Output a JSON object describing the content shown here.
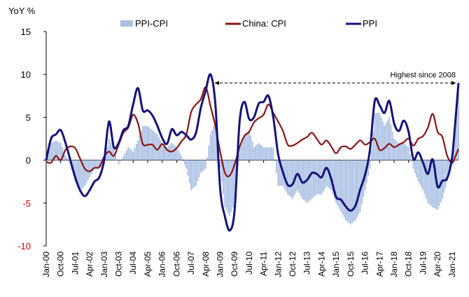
{
  "chart_data": {
    "type": "line",
    "ylabel": "YoY %",
    "ylim": [
      -10,
      15
    ],
    "yticks": [
      15,
      10,
      5,
      0,
      -5,
      -10
    ],
    "x_tick_labels": [
      "Jan-00",
      "Oct-00",
      "Jul-01",
      "Apr-02",
      "Jan-03",
      "Oct-03",
      "Jul-04",
      "Apr-05",
      "Jan-06",
      "Oct-06",
      "Jul-07",
      "Apr-08",
      "Jan-09",
      "Oct-09",
      "Jul-10",
      "Apr-11",
      "Jan-12",
      "Oct-12",
      "Jul-13",
      "Apr-14",
      "Jan-15",
      "Oct-15",
      "Jul-16",
      "Apr-17",
      "Jan-18",
      "Oct-18",
      "Jul-19",
      "Apr-20",
      "Jan-21"
    ],
    "x_start": "Jan-00",
    "x_end": "May-21",
    "grid": false,
    "legend_position": "top",
    "annotation": {
      "text": "Highest since 2008",
      "from": "Aug-08",
      "to": "May-21",
      "value": 9.0
    },
    "colors": {
      "ppi_cpi": "#a9bfe3",
      "cpi": "#8b1414",
      "ppi": "#14127a",
      "negative_tick": "#d40000"
    },
    "series": [
      {
        "name": "PPI-CPI",
        "kind": "bar",
        "points": [
          [
            "Jan-00",
            0.5
          ],
          [
            "Apr-00",
            2.0
          ],
          [
            "Jul-00",
            2.3
          ],
          [
            "Oct-00",
            2.0
          ],
          [
            "Jan-01",
            0.6
          ],
          [
            "Apr-01",
            -0.5
          ],
          [
            "Jul-01",
            -2.5
          ],
          [
            "Oct-01",
            -3.5
          ],
          [
            "Jan-02",
            -3.0
          ],
          [
            "Apr-02",
            -2.0
          ],
          [
            "Jul-02",
            -1.0
          ],
          [
            "Oct-02",
            -1.0
          ],
          [
            "Jan-03",
            -0.5
          ],
          [
            "Apr-03",
            2.5
          ],
          [
            "Jul-03",
            1.3
          ],
          [
            "Oct-03",
            -0.5
          ],
          [
            "Jan-04",
            0.5
          ],
          [
            "Apr-04",
            1.5
          ],
          [
            "Jul-04",
            1.0
          ],
          [
            "Oct-04",
            2.3
          ],
          [
            "Jan-05",
            4.0
          ],
          [
            "Apr-05",
            4.0
          ],
          [
            "Jul-05",
            3.5
          ],
          [
            "Oct-05",
            3.0
          ],
          [
            "Jan-06",
            2.0
          ],
          [
            "Apr-06",
            1.5
          ],
          [
            "Jul-06",
            2.0
          ],
          [
            "Oct-06",
            1.5
          ],
          [
            "Jan-07",
            0.5
          ],
          [
            "Apr-07",
            -1.0
          ],
          [
            "Jul-07",
            -3.5
          ],
          [
            "Oct-07",
            -3.0
          ],
          [
            "Jan-08",
            -1.5
          ],
          [
            "Apr-08",
            -1.0
          ],
          [
            "Jul-08",
            3.0
          ],
          [
            "Oct-08",
            4.5
          ],
          [
            "Jan-09",
            -1.0
          ],
          [
            "Apr-09",
            -5.5
          ],
          [
            "Jul-09",
            -6.5
          ],
          [
            "Oct-09",
            -5.0
          ],
          [
            "Jan-10",
            1.5
          ],
          [
            "Apr-10",
            3.0
          ],
          [
            "Jul-10",
            3.5
          ],
          [
            "Oct-10",
            1.5
          ],
          [
            "Jan-11",
            2.0
          ],
          [
            "Apr-11",
            1.5
          ],
          [
            "Jul-11",
            1.5
          ],
          [
            "Oct-11",
            1.5
          ],
          [
            "Jan-12",
            -3.0
          ],
          [
            "Apr-12",
            -3.0
          ],
          [
            "Jul-12",
            -4.0
          ],
          [
            "Oct-12",
            -4.5
          ],
          [
            "Jan-13",
            -3.5
          ],
          [
            "Apr-13",
            -4.5
          ],
          [
            "Jul-13",
            -5.0
          ],
          [
            "Oct-13",
            -4.5
          ],
          [
            "Jan-14",
            -4.0
          ],
          [
            "Apr-14",
            -4.0
          ],
          [
            "Jul-14",
            -3.0
          ],
          [
            "Oct-14",
            -3.5
          ],
          [
            "Jan-15",
            -5.0
          ],
          [
            "Apr-15",
            -6.0
          ],
          [
            "Jul-15",
            -7.0
          ],
          [
            "Oct-15",
            -7.5
          ],
          [
            "Jan-16",
            -7.0
          ],
          [
            "Apr-16",
            -6.0
          ],
          [
            "Jul-16",
            -3.5
          ],
          [
            "Oct-16",
            -1.0
          ],
          [
            "Jan-17",
            5.5
          ],
          [
            "Apr-17",
            5.5
          ],
          [
            "Jul-17",
            4.0
          ],
          [
            "Oct-17",
            5.0
          ],
          [
            "Jan-18",
            2.5
          ],
          [
            "Apr-18",
            2.0
          ],
          [
            "Jul-18",
            2.0
          ],
          [
            "Oct-18",
            1.5
          ],
          [
            "Jan-19",
            -1.0
          ],
          [
            "Apr-19",
            -2.5
          ],
          [
            "Jul-19",
            -3.5
          ],
          [
            "Oct-19",
            -5.0
          ],
          [
            "Jan-20",
            -5.5
          ],
          [
            "Apr-20",
            -5.8
          ],
          [
            "Jul-20",
            -4.5
          ],
          [
            "Oct-20",
            -2.5
          ],
          [
            "Jan-21",
            0.0
          ],
          [
            "Mar-21",
            4.0
          ],
          [
            "May-21",
            7.8
          ]
        ]
      },
      {
        "name": "China: CPI",
        "kind": "line",
        "points": [
          [
            "Jan-00",
            -0.2
          ],
          [
            "Apr-00",
            -0.3
          ],
          [
            "Jul-00",
            0.5
          ],
          [
            "Oct-00",
            0.0
          ],
          [
            "Jan-01",
            1.2
          ],
          [
            "Apr-01",
            1.6
          ],
          [
            "Jul-01",
            1.4
          ],
          [
            "Oct-01",
            0.2
          ],
          [
            "Jan-02",
            -1.0
          ],
          [
            "Apr-02",
            -1.3
          ],
          [
            "Jul-02",
            -0.9
          ],
          [
            "Oct-02",
            -0.8
          ],
          [
            "Jan-03",
            0.4
          ],
          [
            "Apr-03",
            1.0
          ],
          [
            "Jul-03",
            0.5
          ],
          [
            "Oct-03",
            1.8
          ],
          [
            "Jan-04",
            3.2
          ],
          [
            "Apr-04",
            3.8
          ],
          [
            "Jul-04",
            5.3
          ],
          [
            "Oct-04",
            4.3
          ],
          [
            "Jan-05",
            1.9
          ],
          [
            "Apr-05",
            1.8
          ],
          [
            "Jul-05",
            1.8
          ],
          [
            "Oct-05",
            1.2
          ],
          [
            "Jan-06",
            1.9
          ],
          [
            "Apr-06",
            1.2
          ],
          [
            "Jul-06",
            1.0
          ],
          [
            "Oct-06",
            1.4
          ],
          [
            "Jan-07",
            2.2
          ],
          [
            "Apr-07",
            3.0
          ],
          [
            "Jul-07",
            5.6
          ],
          [
            "Oct-07",
            6.5
          ],
          [
            "Jan-08",
            7.1
          ],
          [
            "Apr-08",
            8.5
          ],
          [
            "Jul-08",
            6.3
          ],
          [
            "Oct-08",
            4.0
          ],
          [
            "Jan-09",
            1.0
          ],
          [
            "Apr-09",
            -1.5
          ],
          [
            "Jul-09",
            -1.8
          ],
          [
            "Oct-09",
            -0.5
          ],
          [
            "Jan-10",
            1.5
          ],
          [
            "Apr-10",
            2.8
          ],
          [
            "Jul-10",
            3.3
          ],
          [
            "Oct-10",
            4.4
          ],
          [
            "Jan-11",
            4.9
          ],
          [
            "Apr-11",
            5.3
          ],
          [
            "Jul-11",
            6.5
          ],
          [
            "Oct-11",
            5.5
          ],
          [
            "Jan-12",
            4.5
          ],
          [
            "Apr-12",
            3.4
          ],
          [
            "Jul-12",
            1.8
          ],
          [
            "Oct-12",
            1.7
          ],
          [
            "Jan-13",
            2.0
          ],
          [
            "Apr-13",
            2.4
          ],
          [
            "Jul-13",
            2.7
          ],
          [
            "Oct-13",
            3.2
          ],
          [
            "Jan-14",
            2.5
          ],
          [
            "Apr-14",
            1.8
          ],
          [
            "Jul-14",
            2.3
          ],
          [
            "Oct-14",
            1.6
          ],
          [
            "Jan-15",
            0.8
          ],
          [
            "Apr-15",
            1.5
          ],
          [
            "Jul-15",
            1.6
          ],
          [
            "Oct-15",
            1.3
          ],
          [
            "Jan-16",
            1.8
          ],
          [
            "Apr-16",
            2.3
          ],
          [
            "Jul-16",
            1.8
          ],
          [
            "Oct-16",
            2.1
          ],
          [
            "Jan-17",
            2.5
          ],
          [
            "Apr-17",
            1.2
          ],
          [
            "Jul-17",
            1.4
          ],
          [
            "Oct-17",
            1.9
          ],
          [
            "Jan-18",
            1.5
          ],
          [
            "Apr-18",
            1.8
          ],
          [
            "Jul-18",
            2.1
          ],
          [
            "Oct-18",
            2.5
          ],
          [
            "Jan-19",
            1.7
          ],
          [
            "Apr-19",
            2.5
          ],
          [
            "Jul-19",
            2.8
          ],
          [
            "Oct-19",
            3.8
          ],
          [
            "Jan-20",
            5.4
          ],
          [
            "Apr-20",
            3.3
          ],
          [
            "Jul-20",
            2.7
          ],
          [
            "Oct-20",
            0.5
          ],
          [
            "Jan-21",
            -0.3
          ],
          [
            "Mar-21",
            0.4
          ],
          [
            "May-21",
            1.3
          ]
        ]
      },
      {
        "name": "PPI",
        "kind": "line",
        "points": [
          [
            "Jan-00",
            0.0
          ],
          [
            "Apr-00",
            2.5
          ],
          [
            "Jul-00",
            3.0
          ],
          [
            "Oct-00",
            3.5
          ],
          [
            "Jan-01",
            2.0
          ],
          [
            "Apr-01",
            0.0
          ],
          [
            "Jul-01",
            -2.0
          ],
          [
            "Oct-01",
            -3.5
          ],
          [
            "Jan-02",
            -4.2
          ],
          [
            "Apr-02",
            -3.5
          ],
          [
            "Jul-02",
            -2.5
          ],
          [
            "Oct-02",
            -2.0
          ],
          [
            "Jan-03",
            0.0
          ],
          [
            "Apr-03",
            4.5
          ],
          [
            "Jul-03",
            1.5
          ],
          [
            "Oct-03",
            2.0
          ],
          [
            "Jan-04",
            3.5
          ],
          [
            "Apr-04",
            4.0
          ],
          [
            "Jul-04",
            6.5
          ],
          [
            "Oct-04",
            8.4
          ],
          [
            "Jan-05",
            5.8
          ],
          [
            "Apr-05",
            5.8
          ],
          [
            "Jul-05",
            5.2
          ],
          [
            "Oct-05",
            4.0
          ],
          [
            "Jan-06",
            2.6
          ],
          [
            "Apr-06",
            1.9
          ],
          [
            "Jul-06",
            3.6
          ],
          [
            "Oct-06",
            2.9
          ],
          [
            "Jan-07",
            3.3
          ],
          [
            "Apr-07",
            2.9
          ],
          [
            "Jul-07",
            2.4
          ],
          [
            "Oct-07",
            3.2
          ],
          [
            "Jan-08",
            6.1
          ],
          [
            "Apr-08",
            8.1
          ],
          [
            "Jul-08",
            10.0
          ],
          [
            "Oct-08",
            6.6
          ],
          [
            "Jan-09",
            -3.3
          ],
          [
            "Apr-09",
            -6.6
          ],
          [
            "Jul-09",
            -8.2
          ],
          [
            "Oct-09",
            -5.8
          ],
          [
            "Jan-10",
            4.3
          ],
          [
            "Apr-10",
            6.8
          ],
          [
            "Jul-10",
            4.8
          ],
          [
            "Oct-10",
            5.0
          ],
          [
            "Jan-11",
            6.6
          ],
          [
            "Apr-11",
            6.8
          ],
          [
            "Jul-11",
            7.5
          ],
          [
            "Oct-11",
            5.0
          ],
          [
            "Jan-12",
            0.7
          ],
          [
            "Apr-12",
            -1.4
          ],
          [
            "Jul-12",
            -2.9
          ],
          [
            "Oct-12",
            -2.8
          ],
          [
            "Jan-13",
            -1.6
          ],
          [
            "Apr-13",
            -2.6
          ],
          [
            "Jul-13",
            -2.3
          ],
          [
            "Oct-13",
            -1.5
          ],
          [
            "Jan-14",
            -1.6
          ],
          [
            "Apr-14",
            -2.0
          ],
          [
            "Jul-14",
            -0.9
          ],
          [
            "Oct-14",
            -2.2
          ],
          [
            "Jan-15",
            -4.3
          ],
          [
            "Apr-15",
            -4.6
          ],
          [
            "Jul-15",
            -5.4
          ],
          [
            "Oct-15",
            -5.9
          ],
          [
            "Jan-16",
            -5.3
          ],
          [
            "Apr-16",
            -3.4
          ],
          [
            "Jul-16",
            -1.7
          ],
          [
            "Oct-16",
            1.2
          ],
          [
            "Jan-17",
            6.9
          ],
          [
            "Apr-17",
            6.4
          ],
          [
            "Jul-17",
            5.5
          ],
          [
            "Oct-17",
            6.9
          ],
          [
            "Jan-18",
            4.3
          ],
          [
            "Apr-18",
            3.4
          ],
          [
            "Jul-18",
            4.6
          ],
          [
            "Oct-18",
            3.3
          ],
          [
            "Jan-19",
            0.1
          ],
          [
            "Apr-19",
            0.9
          ],
          [
            "Jul-19",
            -0.3
          ],
          [
            "Oct-19",
            -1.6
          ],
          [
            "Jan-20",
            0.1
          ],
          [
            "Apr-20",
            -3.1
          ],
          [
            "Jul-20",
            -2.4
          ],
          [
            "Oct-20",
            -2.1
          ],
          [
            "Jan-21",
            0.3
          ],
          [
            "Mar-21",
            4.4
          ],
          [
            "May-21",
            9.0
          ]
        ]
      }
    ]
  }
}
